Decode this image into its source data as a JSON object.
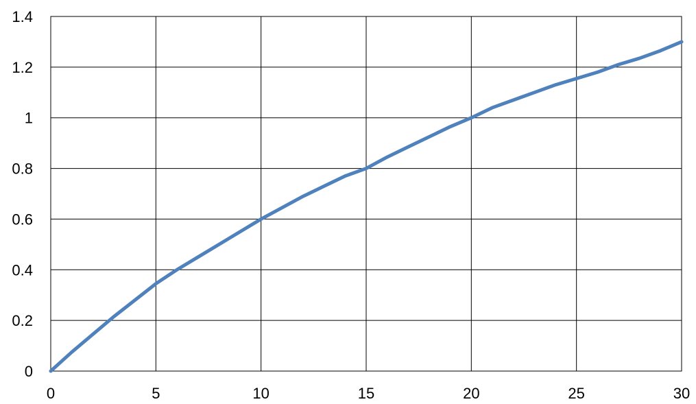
{
  "chart_data": {
    "type": "line",
    "title": "",
    "xlabel": "",
    "ylabel": "",
    "xlim": [
      0,
      30
    ],
    "ylim": [
      0,
      1.4
    ],
    "x_ticks": [
      0,
      5,
      10,
      15,
      20,
      25,
      30
    ],
    "y_ticks": [
      0,
      0.2,
      0.4,
      0.6,
      0.8,
      1,
      1.2,
      1.4
    ],
    "x_tick_labels": [
      "0",
      "5",
      "10",
      "15",
      "20",
      "25",
      "30"
    ],
    "y_tick_labels": [
      "0",
      "0.2",
      "0.4",
      "0.6",
      "0.8",
      "1",
      "1.2",
      "1.4"
    ],
    "grid": true,
    "legend": "none",
    "series": [
      {
        "color": "#4f81bd",
        "x": [
          0,
          1,
          2,
          3,
          4,
          5,
          6,
          7,
          8,
          9,
          10,
          11,
          12,
          13,
          14,
          15,
          16,
          17,
          18,
          19,
          20,
          21,
          22,
          23,
          24,
          25,
          26,
          27,
          28,
          29,
          30
        ],
        "y": [
          0,
          0.075,
          0.145,
          0.215,
          0.28,
          0.345,
          0.4,
          0.45,
          0.5,
          0.55,
          0.6,
          0.645,
          0.69,
          0.73,
          0.77,
          0.8,
          0.845,
          0.885,
          0.925,
          0.965,
          1.0,
          1.04,
          1.07,
          1.1,
          1.13,
          1.155,
          1.18,
          1.21,
          1.235,
          1.265,
          1.3
        ]
      }
    ]
  }
}
